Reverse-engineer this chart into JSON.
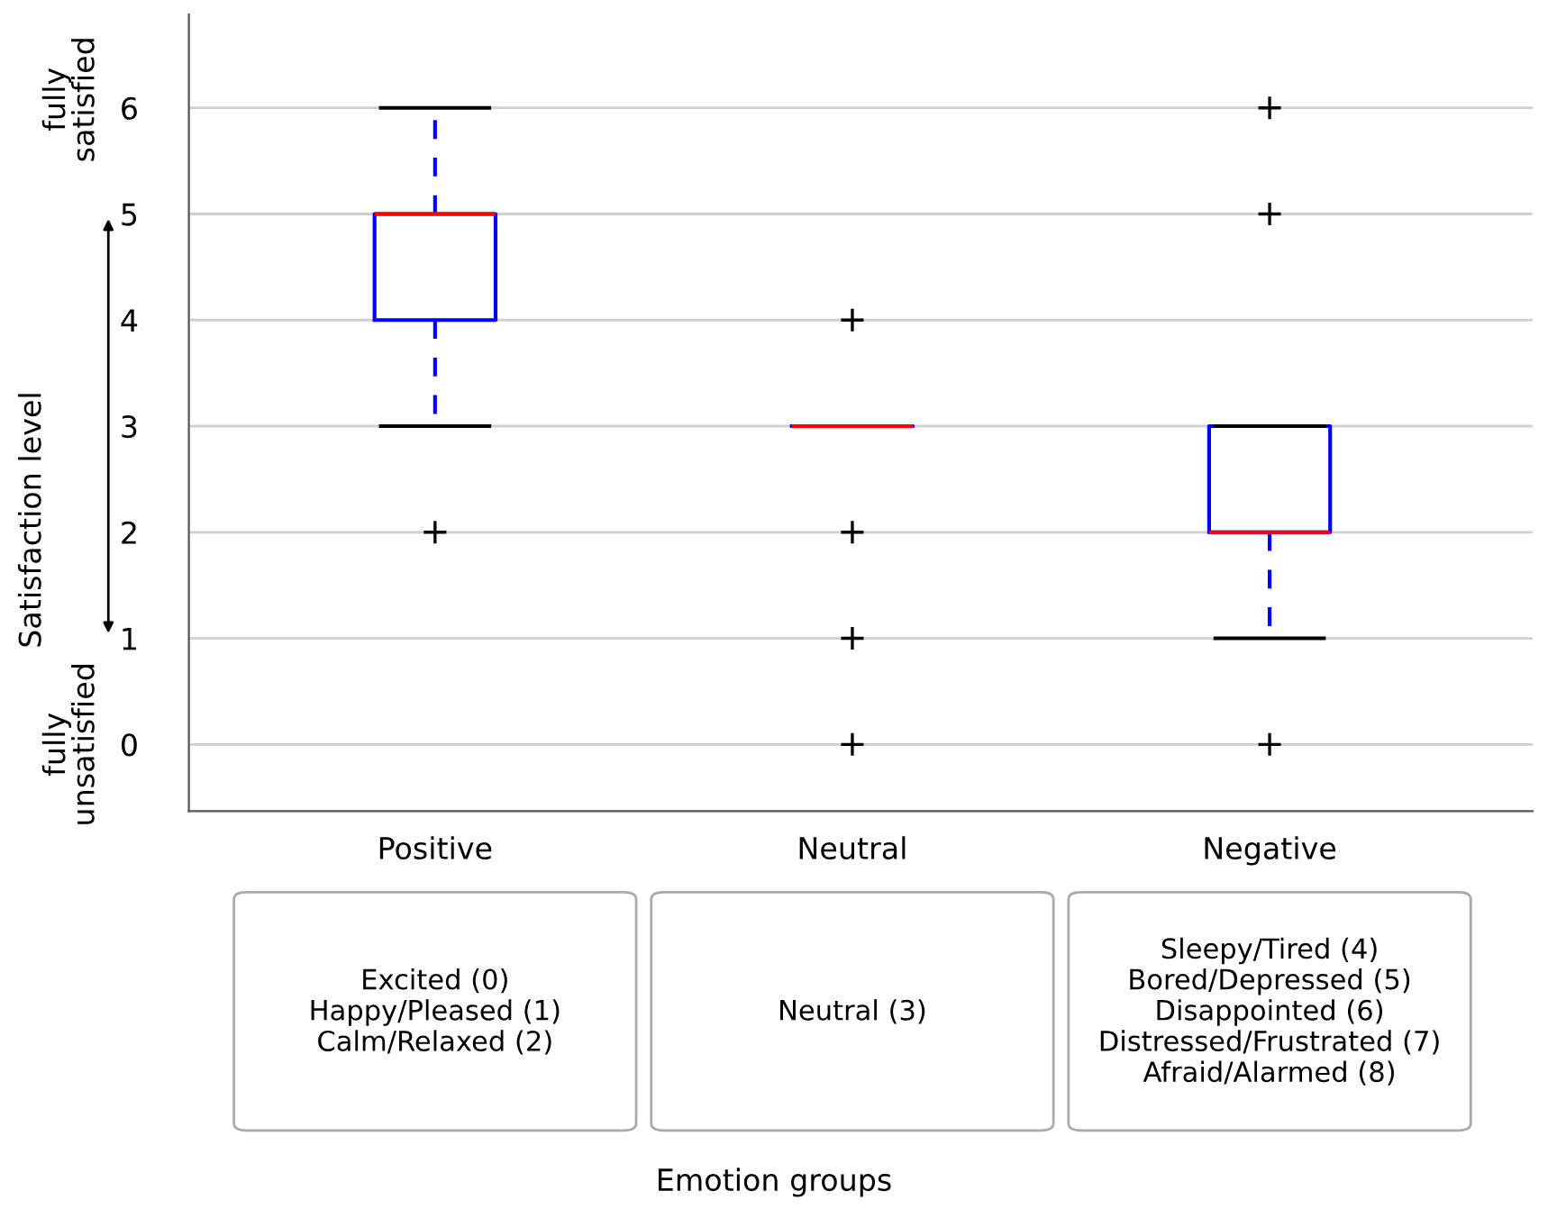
{
  "chart_data": {
    "type": "box",
    "ylabel": "Satisfaction level",
    "categories": [
      "Positive",
      "Neutral",
      "Negative"
    ],
    "series": [
      {
        "color": "#0000ff",
        "boxes": [
          {
            "low": 3,
            "q1": 4,
            "median": 5,
            "q3": 5,
            "high": 6,
            "outliers": [
              2
            ]
          },
          {
            "low": 3,
            "q1": 3,
            "median": 3,
            "q3": 3,
            "high": 3,
            "outliers": [
              4,
              2,
              1,
              0
            ]
          },
          {
            "low": 1,
            "q1": 2,
            "median": 2,
            "q3": 3,
            "high": 3,
            "outliers": [
              6,
              5,
              0
            ]
          }
        ]
      }
    ],
    "ylim": [
      -0.63,
      6.88
    ],
    "yticks": [
      0,
      1,
      2,
      3,
      4,
      5,
      6
    ],
    "grid": "y",
    "marker": "cross",
    "annotations": [
      "fully\nsatisfied",
      "fully\nunsatisfied",
      "Emotion groups",
      "Excited (0)\nHappy/Pleased (1)\nCalm/Relaxed (2)",
      "Neutral (3)",
      "Sleepy/Tired (4)\nBored/Depressed (5)\nDisappointed (6)\nDistressed/Frustrated (7)\nAfraid/Alarmed (8)"
    ]
  }
}
